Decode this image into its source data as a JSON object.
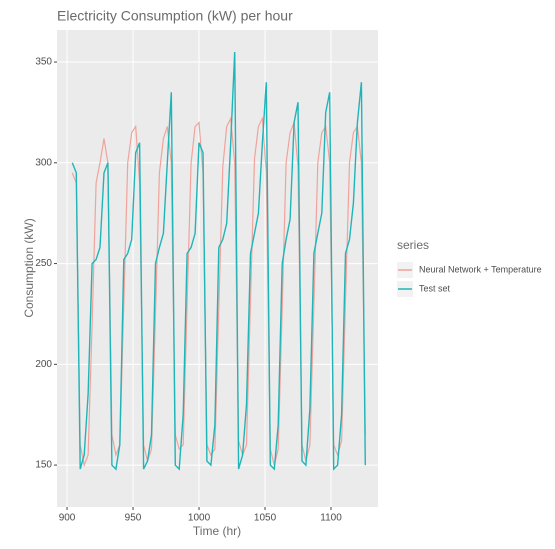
{
  "chart_data": {
    "type": "line",
    "title": "Electricity Consumption (kW) per hour",
    "xlabel": "Time (hr)",
    "ylabel": "Consumption (kW)",
    "legend_title": "series",
    "x": [
      904,
      907,
      910,
      913,
      916,
      919,
      922,
      925,
      928,
      931,
      934,
      937,
      940,
      943,
      946,
      949,
      952,
      955,
      958,
      961,
      964,
      967,
      970,
      973,
      976,
      979,
      982,
      985,
      988,
      991,
      994,
      997,
      1000,
      1003,
      1006,
      1009,
      1012,
      1015,
      1018,
      1021,
      1024,
      1027,
      1030,
      1033,
      1036,
      1039,
      1042,
      1045,
      1048,
      1051,
      1054,
      1057,
      1060,
      1063,
      1066,
      1069,
      1072,
      1075,
      1078,
      1081,
      1084,
      1087,
      1090,
      1093,
      1096,
      1099,
      1102,
      1105,
      1108,
      1111,
      1114,
      1117,
      1120,
      1123,
      1126
    ],
    "series": [
      {
        "name": "Neural Network + Temperature",
        "color": "#f0a39c",
        "values": [
          295,
          290,
          160,
          150,
          155,
          220,
          290,
          300,
          312,
          300,
          165,
          155,
          160,
          230,
          300,
          315,
          318,
          290,
          160,
          152,
          158,
          225,
          295,
          312,
          318,
          300,
          165,
          158,
          160,
          230,
          300,
          318,
          320,
          295,
          160,
          155,
          158,
          228,
          298,
          318,
          322,
          300,
          162,
          155,
          160,
          232,
          302,
          318,
          322,
          295,
          158,
          150,
          158,
          228,
          300,
          315,
          320,
          298,
          160,
          152,
          160,
          230,
          300,
          315,
          318,
          300,
          160,
          155,
          162,
          232,
          300,
          315,
          318,
          300,
          165
        ]
      },
      {
        "name": "Test set",
        "color": "#1fb5b8",
        "values": [
          300,
          295,
          148,
          155,
          185,
          250,
          252,
          258,
          295,
          300,
          150,
          148,
          160,
          252,
          255,
          262,
          305,
          310,
          148,
          152,
          165,
          250,
          258,
          265,
          300,
          335,
          150,
          148,
          175,
          255,
          258,
          265,
          310,
          305,
          152,
          150,
          170,
          258,
          262,
          270,
          310,
          355,
          148,
          155,
          180,
          255,
          265,
          275,
          310,
          340,
          150,
          148,
          170,
          250,
          262,
          272,
          320,
          330,
          152,
          150,
          178,
          255,
          265,
          275,
          325,
          335,
          148,
          150,
          175,
          255,
          262,
          280,
          320,
          340,
          150
        ]
      }
    ],
    "xlim": [
      892.4,
      1135.6
    ],
    "ylim": [
      129.2,
      365.9
    ],
    "xticks": [
      900,
      950,
      1000,
      1050,
      1100
    ],
    "yticks": [
      150,
      200,
      250,
      300,
      350
    ],
    "grid": true,
    "legend": "right"
  }
}
